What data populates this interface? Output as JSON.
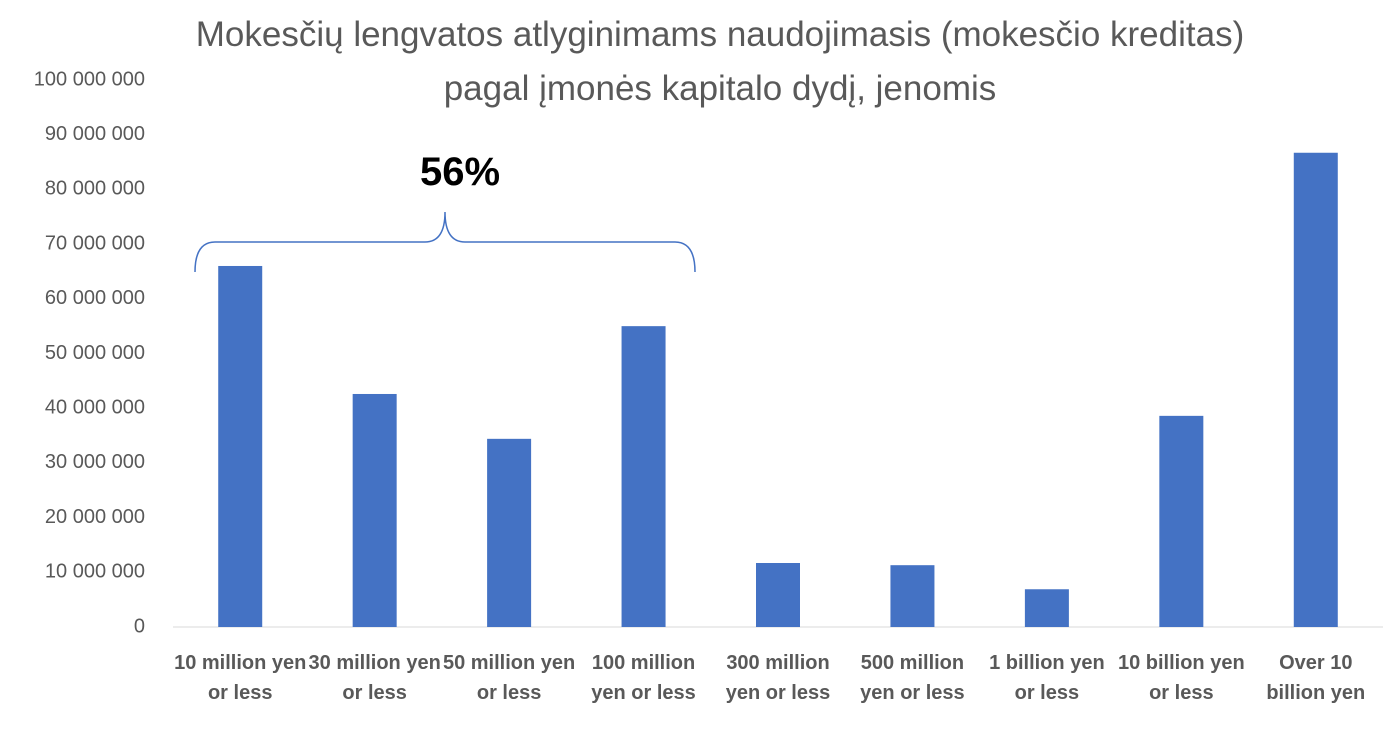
{
  "chart_data": {
    "type": "bar",
    "title": "Mokesčių lengvatos atlyginimams naudojimasis (mokesčio kreditas) pagal įmonės kapitalo dydį, jenomis",
    "annotation": "56%",
    "categories": [
      "10 million yen or less",
      "30 million yen or less",
      "50 million yen or less",
      "100 million yen or less",
      "300 million yen or less",
      "500 million yen or less",
      "1 billion yen or less",
      "10 billion yen or less",
      "Over 10 billion yen"
    ],
    "values": [
      66000000,
      42600000,
      34400000,
      55000000,
      11700000,
      11300000,
      6900000,
      38600000,
      86700000
    ],
    "color": "#4472c4",
    "ylim": [
      0,
      100000000
    ],
    "yticks": [
      0,
      {
        "value": 10000000,
        "label": "10 000 000"
      },
      {
        "value": 20000000,
        "label": "20 000 000"
      },
      {
        "value": 30000000,
        "label": "30 000 000"
      },
      {
        "value": 40000000,
        "label": "40 000 000"
      },
      {
        "value": 50000000,
        "label": "50 000 000"
      },
      {
        "value": 60000000,
        "label": "60 000 000"
      },
      {
        "value": 70000000,
        "label": "70 000 000"
      },
      {
        "value": 80000000,
        "label": "80 000 000"
      },
      {
        "value": 90000000,
        "label": "90 000 000"
      },
      {
        "value": 100000000,
        "label": "100 000 000"
      }
    ],
    "grid": false
  }
}
